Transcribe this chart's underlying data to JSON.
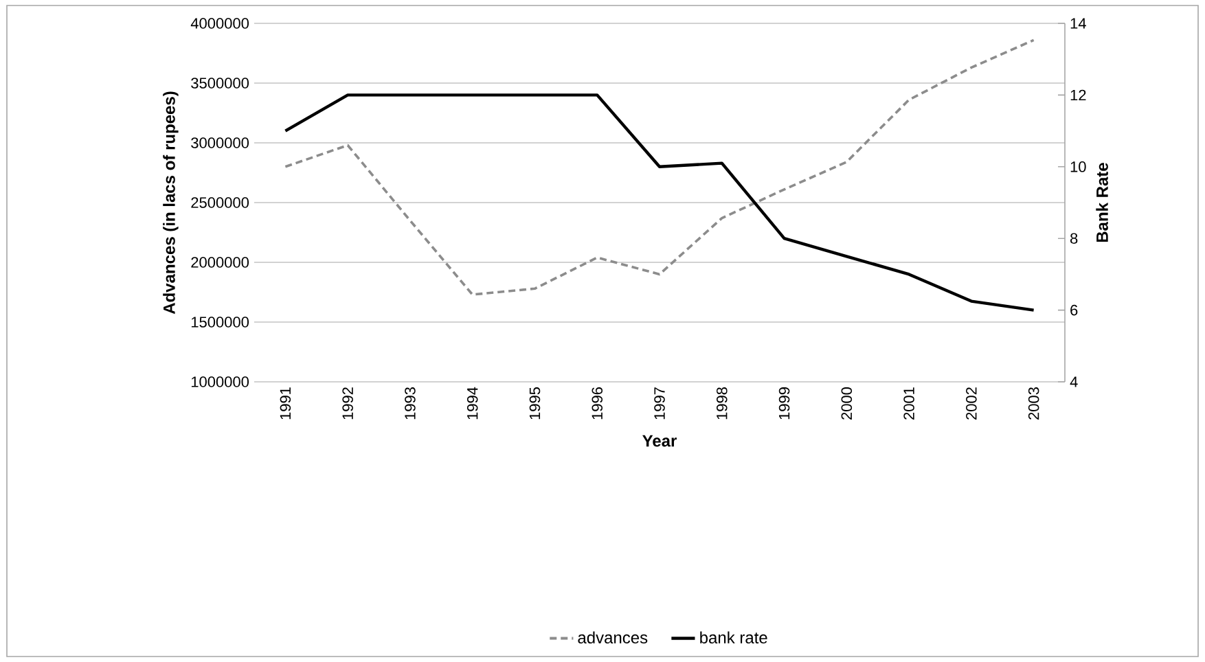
{
  "chart_data": {
    "type": "line",
    "xlabel": "Year",
    "ylabel": "Advances (in lacs of rupees)",
    "y2label": "Bank Rate",
    "categories": [
      "1991",
      "1992",
      "1993",
      "1994",
      "1995",
      "1996",
      "1997",
      "1998",
      "1999",
      "2000",
      "2001",
      "2002",
      "2003"
    ],
    "series": [
      {
        "name": "advances",
        "color": "#8c8c8c",
        "line_style": "dashed",
        "values": [
          2800000,
          2980000,
          2350000,
          1730000,
          1780000,
          2040000,
          1900000,
          2370000,
          2610000,
          2840000,
          3360000,
          3630000,
          3860000
        ]
      },
      {
        "name": "bank rate",
        "color": "#000000",
        "line_style": "solid",
        "axis": "y2",
        "values": [
          11,
          12,
          12,
          12,
          12,
          12,
          10,
          10.1,
          8,
          7.5,
          7,
          6.25,
          6
        ]
      }
    ],
    "ylim": [
      1000000,
      4000000
    ],
    "yticks": [
      1000000,
      1500000,
      2000000,
      2500000,
      3000000,
      3500000,
      4000000
    ],
    "y2lim": [
      4,
      14
    ],
    "y2ticks": [
      4,
      6,
      8,
      10,
      12,
      14
    ],
    "grid": "y",
    "legend": "bottom",
    "marker": "none"
  }
}
